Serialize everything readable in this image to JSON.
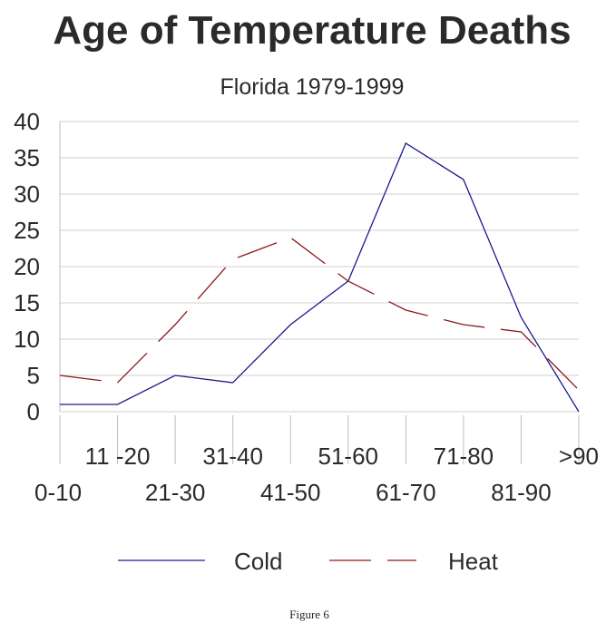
{
  "chart_data": {
    "type": "line",
    "title": "Age of Temperature Deaths",
    "subtitle": "Florida  1979-1999",
    "categories": [
      "0-10",
      "11 -20",
      "21-30",
      "31-40",
      "41-50",
      "51-60",
      "61-70",
      "71-80",
      "81-90",
      ">90"
    ],
    "yticks": [
      "40",
      "35",
      "30",
      "25",
      "20",
      "15",
      "10",
      "5",
      "0"
    ],
    "ylim": [
      0,
      40
    ],
    "grid": true,
    "legend_position": "bottom",
    "series": [
      {
        "name": "Cold",
        "color": "#1a1a8c",
        "dash": "solid",
        "values": [
          1,
          1,
          5,
          4,
          12,
          18,
          37,
          32,
          13,
          0
        ]
      },
      {
        "name": "Heat",
        "color": "#8b1a1a",
        "dash": "dashed",
        "values": [
          5,
          4,
          12,
          21,
          24,
          18,
          14,
          12,
          11,
          3
        ]
      }
    ]
  },
  "caption": "Figure 6"
}
